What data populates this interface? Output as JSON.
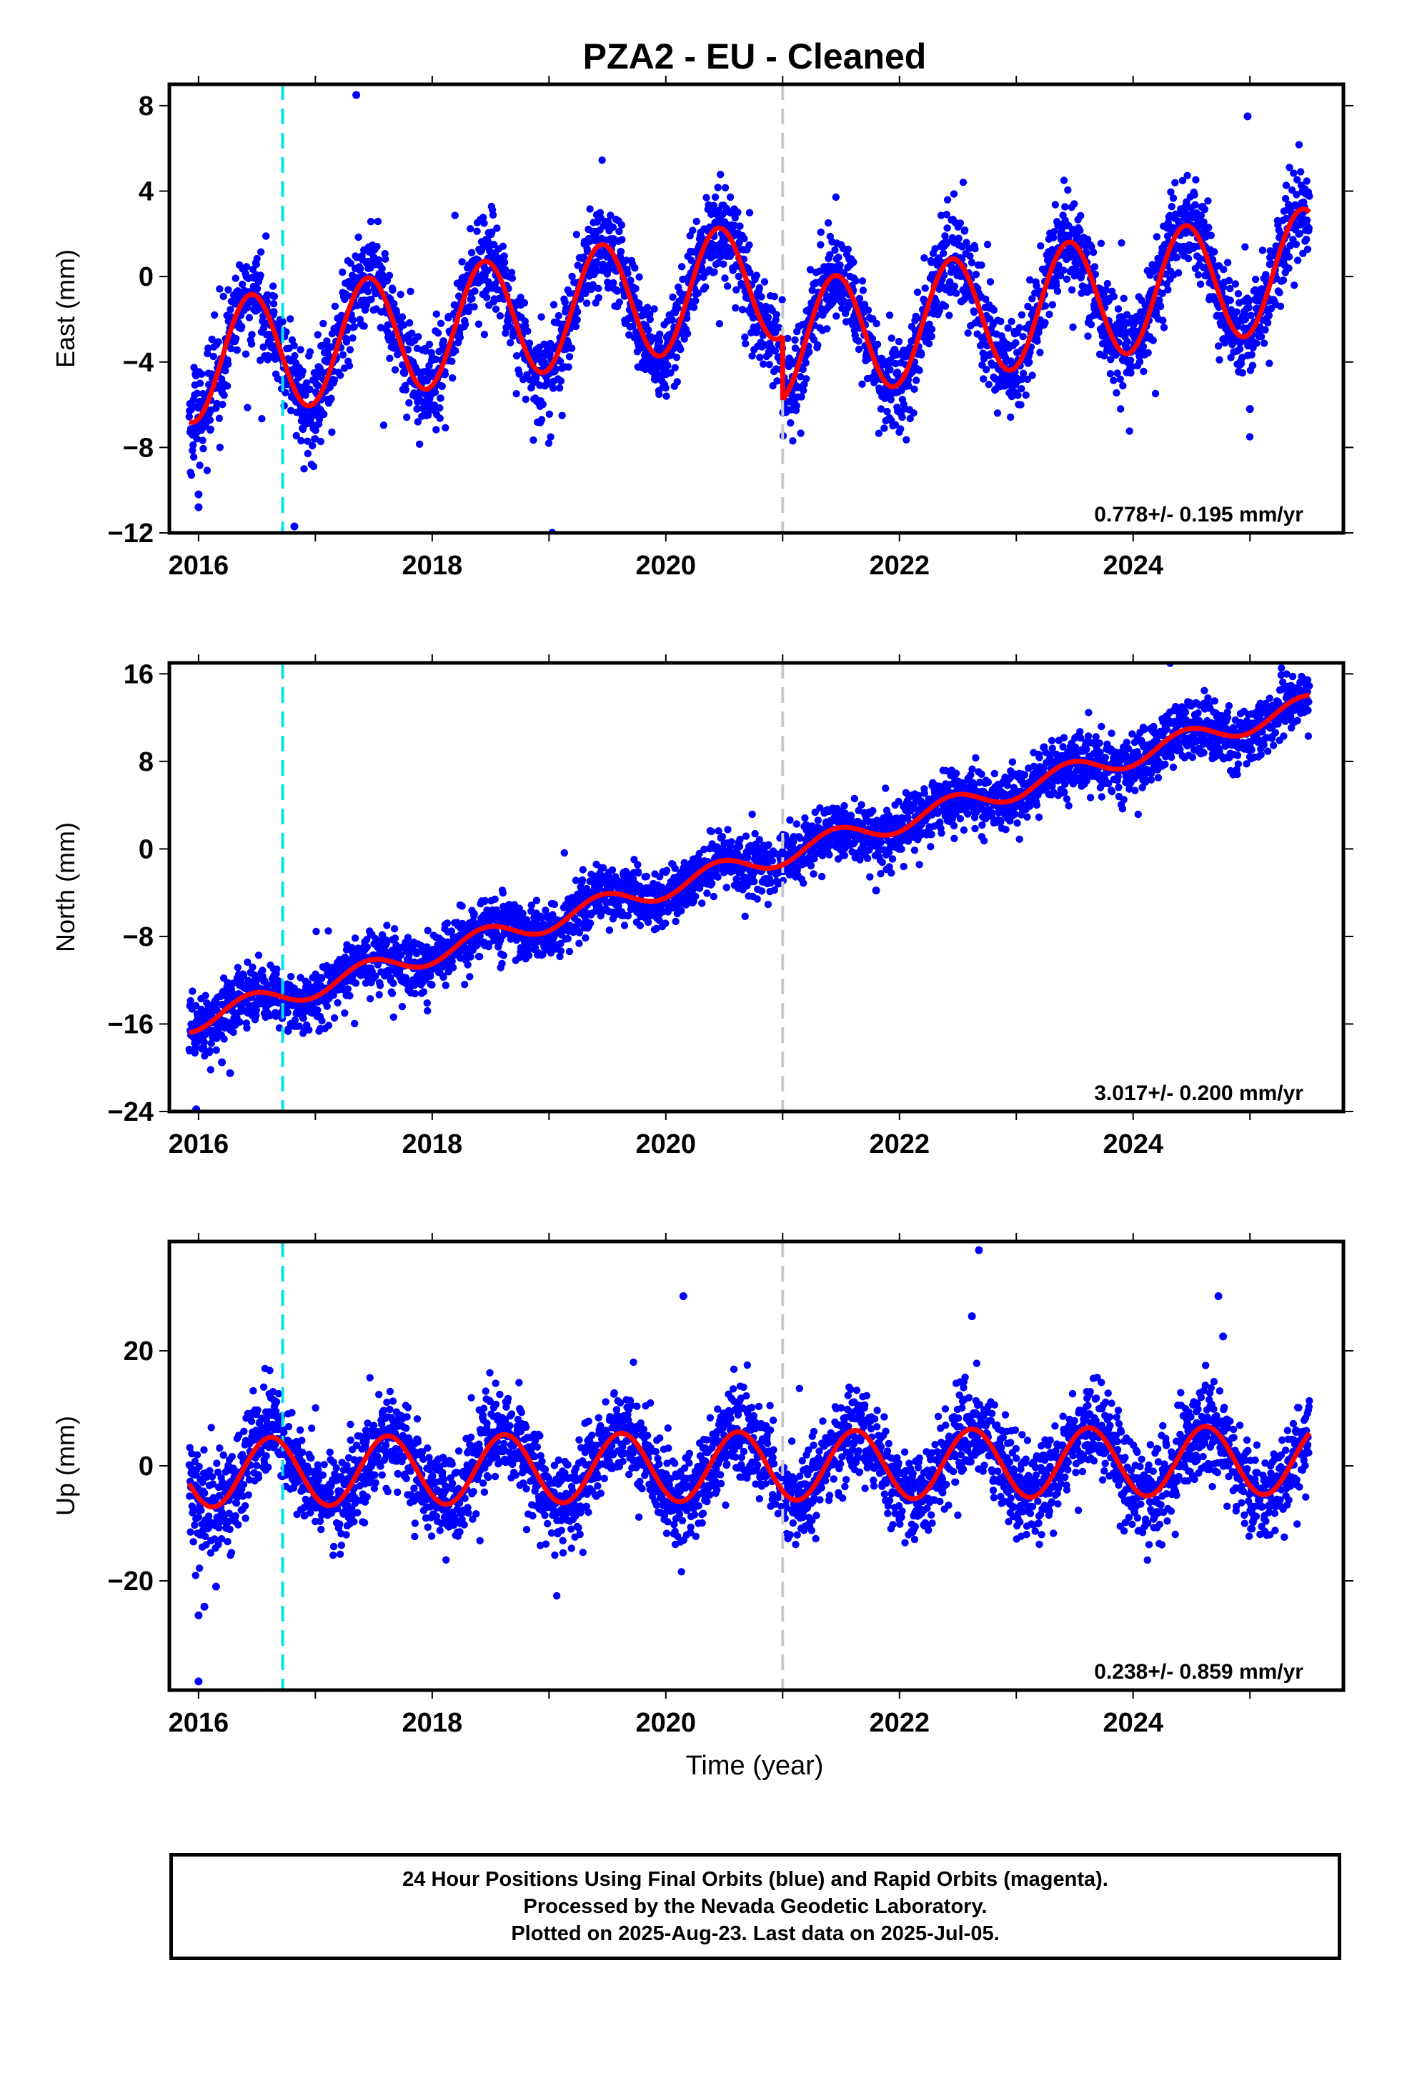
{
  "title": "PZA2  - EU - Cleaned",
  "xlabel": "Time (year)",
  "colors": {
    "points": "#0000ff",
    "model": "#ff0000",
    "cyan_line": "#00e5ee",
    "gray_line": "#c8c8c8"
  },
  "footer": {
    "line1": "24 Hour Positions Using Final Orbits (blue) and Rapid Orbits (magenta).",
    "line2": "Processed by the Nevada Geodetic Laboratory.",
    "line3": "Plotted on 2025-Aug-23. Last data on 2025-Jul-05."
  },
  "chart_data": [
    {
      "type": "scatter",
      "component": "East",
      "ylabel": "East (mm)",
      "xlim": [
        2015.75,
        2025.8
      ],
      "ylim": [
        -12,
        9
      ],
      "xticks": [
        "2016",
        "2018",
        "2020",
        "2022",
        "2024"
      ],
      "yticks": [
        "8",
        "4",
        "0",
        "-4",
        "-8",
        "-12"
      ],
      "rate_label": "0.778+/- 0.195 mm/yr",
      "rate_mm_yr": 0.778,
      "rate_sigma": 0.195,
      "seasonal_amplitude_mm": 2.8,
      "seasonal_peak_phase": 0.45,
      "offset_at": 2021.0,
      "offset_mm": -3.0,
      "noise_mm": 1.1,
      "vertical_lines": [
        {
          "x": 2016.72,
          "color": "cyan"
        },
        {
          "x": 2021.0,
          "color": "gray"
        }
      ],
      "outliers": [
        [
          2016.0,
          -10.2
        ],
        [
          2016.0,
          -10.8
        ],
        [
          2016.82,
          -11.7
        ],
        [
          2017.0,
          -7.0
        ],
        [
          2017.35,
          8.5
        ],
        [
          2024.98,
          7.5
        ],
        [
          2025.0,
          -6.2
        ]
      ]
    },
    {
      "type": "scatter",
      "component": "North",
      "ylabel": "North (mm)",
      "xlim": [
        2015.75,
        2025.8
      ],
      "ylim": [
        -24,
        17
      ],
      "xticks": [
        "2016",
        "2018",
        "2020",
        "2022",
        "2024"
      ],
      "yticks": [
        "16",
        "8",
        "0",
        "-8",
        "-16",
        "-24"
      ],
      "rate_label": "3.017+/- 0.200 mm/yr",
      "rate_mm_yr": 3.017,
      "rate_sigma": 0.2,
      "seasonal_amplitude_mm": 1.0,
      "seasonal_peak_phase": 0.45,
      "offset_at": 2021.0,
      "offset_mm": 0,
      "noise_mm": 1.3,
      "vertical_lines": [
        {
          "x": 2016.72,
          "color": "cyan"
        },
        {
          "x": 2021.0,
          "color": "gray"
        }
      ],
      "outliers": [
        [
          2015.98,
          -23.8
        ],
        [
          2016.27,
          -20.5
        ],
        [
          2016.2,
          -19.5
        ],
        [
          2021.8,
          -3.8
        ]
      ]
    },
    {
      "type": "scatter",
      "component": "Up",
      "ylabel": "Up (mm)",
      "xlim": [
        2015.75,
        2025.8
      ],
      "ylim": [
        -39,
        39
      ],
      "xticks": [
        "2016",
        "2018",
        "2020",
        "2022",
        "2024"
      ],
      "yticks": [
        "20",
        "0",
        "-20"
      ],
      "rate_label": "0.238+/- 0.859 mm/yr",
      "rate_mm_yr": 0.238,
      "rate_sigma": 0.859,
      "seasonal_amplitude_mm": 6.0,
      "seasonal_peak_phase": 0.62,
      "offset_at": 2021.0,
      "offset_mm": 0,
      "noise_mm": 4.0,
      "vertical_lines": [
        {
          "x": 2016.72,
          "color": "cyan"
        },
        {
          "x": 2021.0,
          "color": "gray"
        }
      ],
      "outliers": [
        [
          2016.0,
          -26.0
        ],
        [
          2016.0,
          -37.5
        ],
        [
          2016.05,
          -24.5
        ],
        [
          2016.15,
          -21.0
        ],
        [
          2020.15,
          29.5
        ],
        [
          2022.68,
          37.5
        ],
        [
          2022.62,
          26.0
        ],
        [
          2024.73,
          29.5
        ],
        [
          2024.77,
          22.5
        ]
      ]
    }
  ]
}
